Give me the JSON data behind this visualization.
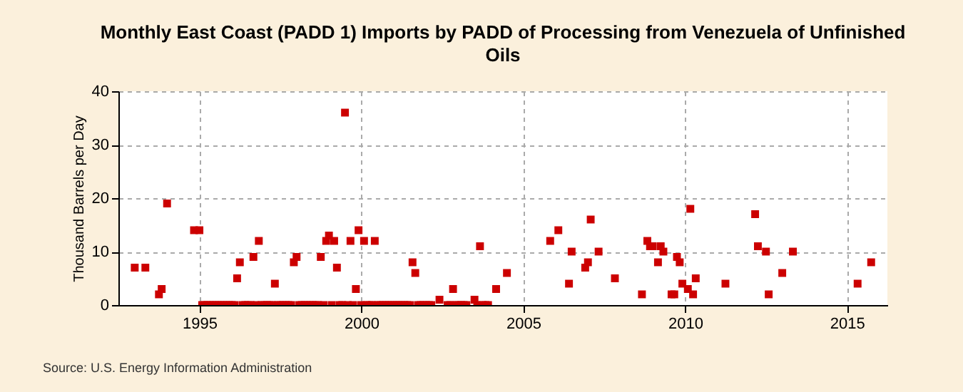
{
  "chart_data": {
    "type": "scatter",
    "title": "Monthly East Coast (PADD 1) Imports by PADD of Processing from Venezuela of Unfinished Oils",
    "ylabel": "Thousand Barrels per Day",
    "annotations": [
      "Source: U.S. Energy Information Administration"
    ],
    "xlim": [
      "1992-07",
      "2016-04"
    ],
    "xticks": [
      "1995",
      "2000",
      "2005",
      "2010",
      "2015"
    ],
    "ylim": [
      0,
      40
    ],
    "yticks": [
      0,
      10,
      20,
      30,
      40
    ],
    "grid": true,
    "marker": "square",
    "series": [
      {
        "color": "#cc0000",
        "x": [
          "1993-01",
          "1993-05",
          "1993-10",
          "1993-11",
          "1994-01",
          "1994-11",
          "1995-01",
          "1995-02",
          "1995-03",
          "1995-04",
          "1995-05",
          "1995-06",
          "1995-07",
          "1995-08",
          "1995-09",
          "1995-10",
          "1995-11",
          "1995-12",
          "1996-01",
          "1996-02",
          "1996-03",
          "1996-04",
          "1996-05",
          "1996-06",
          "1996-07",
          "1996-08",
          "1996-09",
          "1996-10",
          "1996-11",
          "1996-12",
          "1997-01",
          "1997-02",
          "1997-03",
          "1997-04",
          "1997-05",
          "1997-06",
          "1997-07",
          "1997-08",
          "1997-09",
          "1997-10",
          "1997-11",
          "1997-12",
          "1998-01",
          "1998-02",
          "1998-03",
          "1998-04",
          "1998-05",
          "1998-06",
          "1998-07",
          "1998-08",
          "1998-09",
          "1998-10",
          "1998-11",
          "1998-12",
          "1999-01",
          "1999-02",
          "1999-03",
          "1999-04",
          "1999-05",
          "1999-06",
          "1999-07",
          "1999-08",
          "1999-09",
          "1999-10",
          "1999-11",
          "1999-12",
          "2000-01",
          "2000-02",
          "2000-03",
          "2000-04",
          "2000-05",
          "2000-06",
          "2000-07",
          "2000-08",
          "2000-09",
          "2000-10",
          "2000-11",
          "2000-12",
          "2001-01",
          "2001-02",
          "2001-03",
          "2001-04",
          "2001-05",
          "2001-06",
          "2001-07",
          "2001-08",
          "2001-09",
          "2001-10",
          "2001-11",
          "2001-12",
          "2002-01",
          "2002-02",
          "2002-03",
          "2002-06",
          "2002-09",
          "2002-10",
          "2002-11",
          "2002-12",
          "2003-01",
          "2003-02",
          "2003-03",
          "2003-04",
          "2003-07",
          "2003-08",
          "2003-09",
          "2003-10",
          "2003-11",
          "2003-12",
          "2004-03",
          "2004-07",
          "2005-11",
          "2006-02",
          "2006-06",
          "2006-07",
          "2006-12",
          "2007-01",
          "2007-02",
          "2007-05",
          "2007-11",
          "2008-09",
          "2008-11",
          "2008-12",
          "2009-01",
          "2009-03",
          "2009-04",
          "2009-05",
          "2009-08",
          "2009-09",
          "2009-10",
          "2009-11",
          "2009-12",
          "2010-02",
          "2010-03",
          "2010-04",
          "2010-05",
          "2011-04",
          "2012-03",
          "2012-04",
          "2012-07",
          "2012-08",
          "2013-01",
          "2013-05",
          "2015-05",
          "2015-10"
        ],
        "values": [
          7,
          7,
          2,
          3,
          19,
          14,
          14,
          0,
          0,
          0,
          0,
          0,
          0,
          0,
          0,
          0,
          0,
          0,
          0,
          0,
          5,
          8,
          0,
          0,
          0,
          0,
          9,
          0,
          12,
          0,
          0,
          0,
          0,
          0,
          4,
          0,
          0,
          0,
          0,
          0,
          0,
          8,
          9,
          0,
          0,
          0,
          0,
          0,
          0,
          0,
          0,
          9,
          0,
          12,
          13,
          0,
          12,
          7,
          0,
          0,
          36,
          0,
          12,
          0,
          3,
          14,
          0,
          12,
          0,
          0,
          0,
          12,
          0,
          0,
          0,
          0,
          0,
          0,
          0,
          0,
          0,
          0,
          0,
          0,
          0,
          8,
          6,
          0,
          0,
          0,
          0,
          0,
          0,
          1,
          0,
          0,
          3,
          0,
          0,
          0,
          0,
          0,
          1,
          0,
          11,
          0,
          0,
          0,
          3,
          6,
          12,
          14,
          4,
          10,
          7,
          8,
          16,
          10,
          5,
          2,
          12,
          11,
          11,
          8,
          11,
          10,
          2,
          2,
          9,
          8,
          4,
          3,
          18,
          2,
          5,
          4,
          17,
          11,
          10,
          2,
          6,
          10,
          4,
          8
        ]
      }
    ]
  }
}
